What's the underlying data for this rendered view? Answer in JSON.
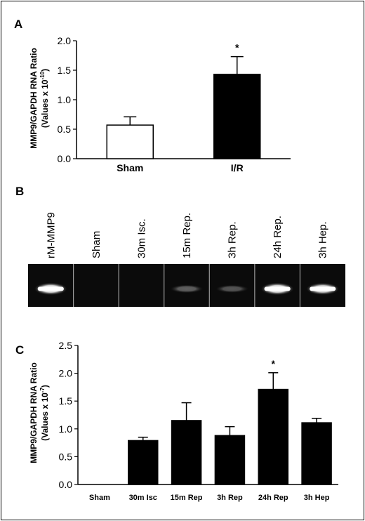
{
  "chart_data": [
    {
      "type": "bar",
      "panel": "A",
      "ylabel": "MMP9/GAPDH RNA Ratio",
      "ylabel_sub": "(Values x 10",
      "ylabel_exp": "-10",
      "ylim": [
        0.0,
        2.0
      ],
      "yticks": [
        "0.0",
        "0.5",
        "1.0",
        "1.5",
        "2.0"
      ],
      "categories": [
        "Sham",
        "I/R"
      ],
      "values": [
        0.57,
        1.43
      ],
      "errors": [
        0.14,
        0.3
      ],
      "bar_colors": [
        "#ffffff",
        "#000000"
      ],
      "significance": [
        "",
        "*"
      ]
    },
    {
      "type": "gel",
      "panel": "B",
      "lanes": [
        "rM-MMP9",
        "Sham",
        "30m Isc.",
        "15m Rep.",
        "3h Rep.",
        "24h Rep.",
        "3h Hep."
      ],
      "band_intensity": [
        0.95,
        0.0,
        0.0,
        0.35,
        0.3,
        0.95,
        0.9
      ]
    },
    {
      "type": "bar",
      "panel": "C",
      "ylabel": "MMP9/GAPDH RNA Ratio",
      "ylabel_sub": "(Values x 10",
      "ylabel_exp": "-7",
      "ylim": [
        0.0,
        2.5
      ],
      "yticks": [
        "0.0",
        "0.5",
        "1.0",
        "1.5",
        "2.0",
        "2.5"
      ],
      "categories": [
        "Sham",
        "30m Isc",
        "15m Rep",
        "3h Rep",
        "24h Rep",
        "3h Hep"
      ],
      "values": [
        0.0,
        0.79,
        1.15,
        0.88,
        1.71,
        1.11
      ],
      "errors": [
        0.0,
        0.06,
        0.32,
        0.16,
        0.3,
        0.08
      ],
      "bar_colors": [
        "#000000",
        "#000000",
        "#000000",
        "#000000",
        "#000000",
        "#000000"
      ],
      "significance": [
        "",
        "",
        "",
        "",
        "*",
        ""
      ]
    }
  ]
}
